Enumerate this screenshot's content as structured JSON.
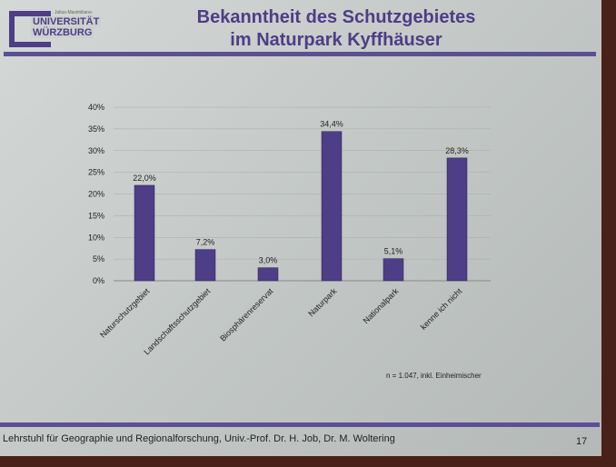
{
  "logo": {
    "small": "Julius-Maximilians-",
    "line1": "UNIVERSITÄT",
    "line2": "WÜRZBURG"
  },
  "title": {
    "line1": "Bekanntheit des Schutzgebietes",
    "line2": "im Naturpark Kyffhäuser"
  },
  "footer": {
    "text": "Lehrstuhl für Geographie und Regionalforschung, Univ.-Prof. Dr. H. Job, Dr. M. Woltering",
    "page": "17"
  },
  "colors": {
    "bar": "#4e3d87",
    "accent": "#5c4f94"
  },
  "chart_data": {
    "type": "bar",
    "categories": [
      "Naturschutzgebiet",
      "Landschaftsschutzgebiet",
      "Biosphärenreservat",
      "Naturpark",
      "Nationalpark",
      "kenne ich nicht"
    ],
    "values": [
      22.0,
      7.2,
      3.0,
      34.4,
      5.1,
      28.3
    ],
    "data_labels": [
      "22,0%",
      "7,2%",
      "3,0%",
      "34,4%",
      "5,1%",
      "28,3%"
    ],
    "yticks": [
      "0%",
      "5%",
      "10%",
      "15%",
      "20%",
      "25%",
      "30%",
      "35%",
      "40%"
    ],
    "ylim": [
      0,
      40
    ],
    "grid": true,
    "note": "n = 1.047, inkl. Einheimischer"
  }
}
